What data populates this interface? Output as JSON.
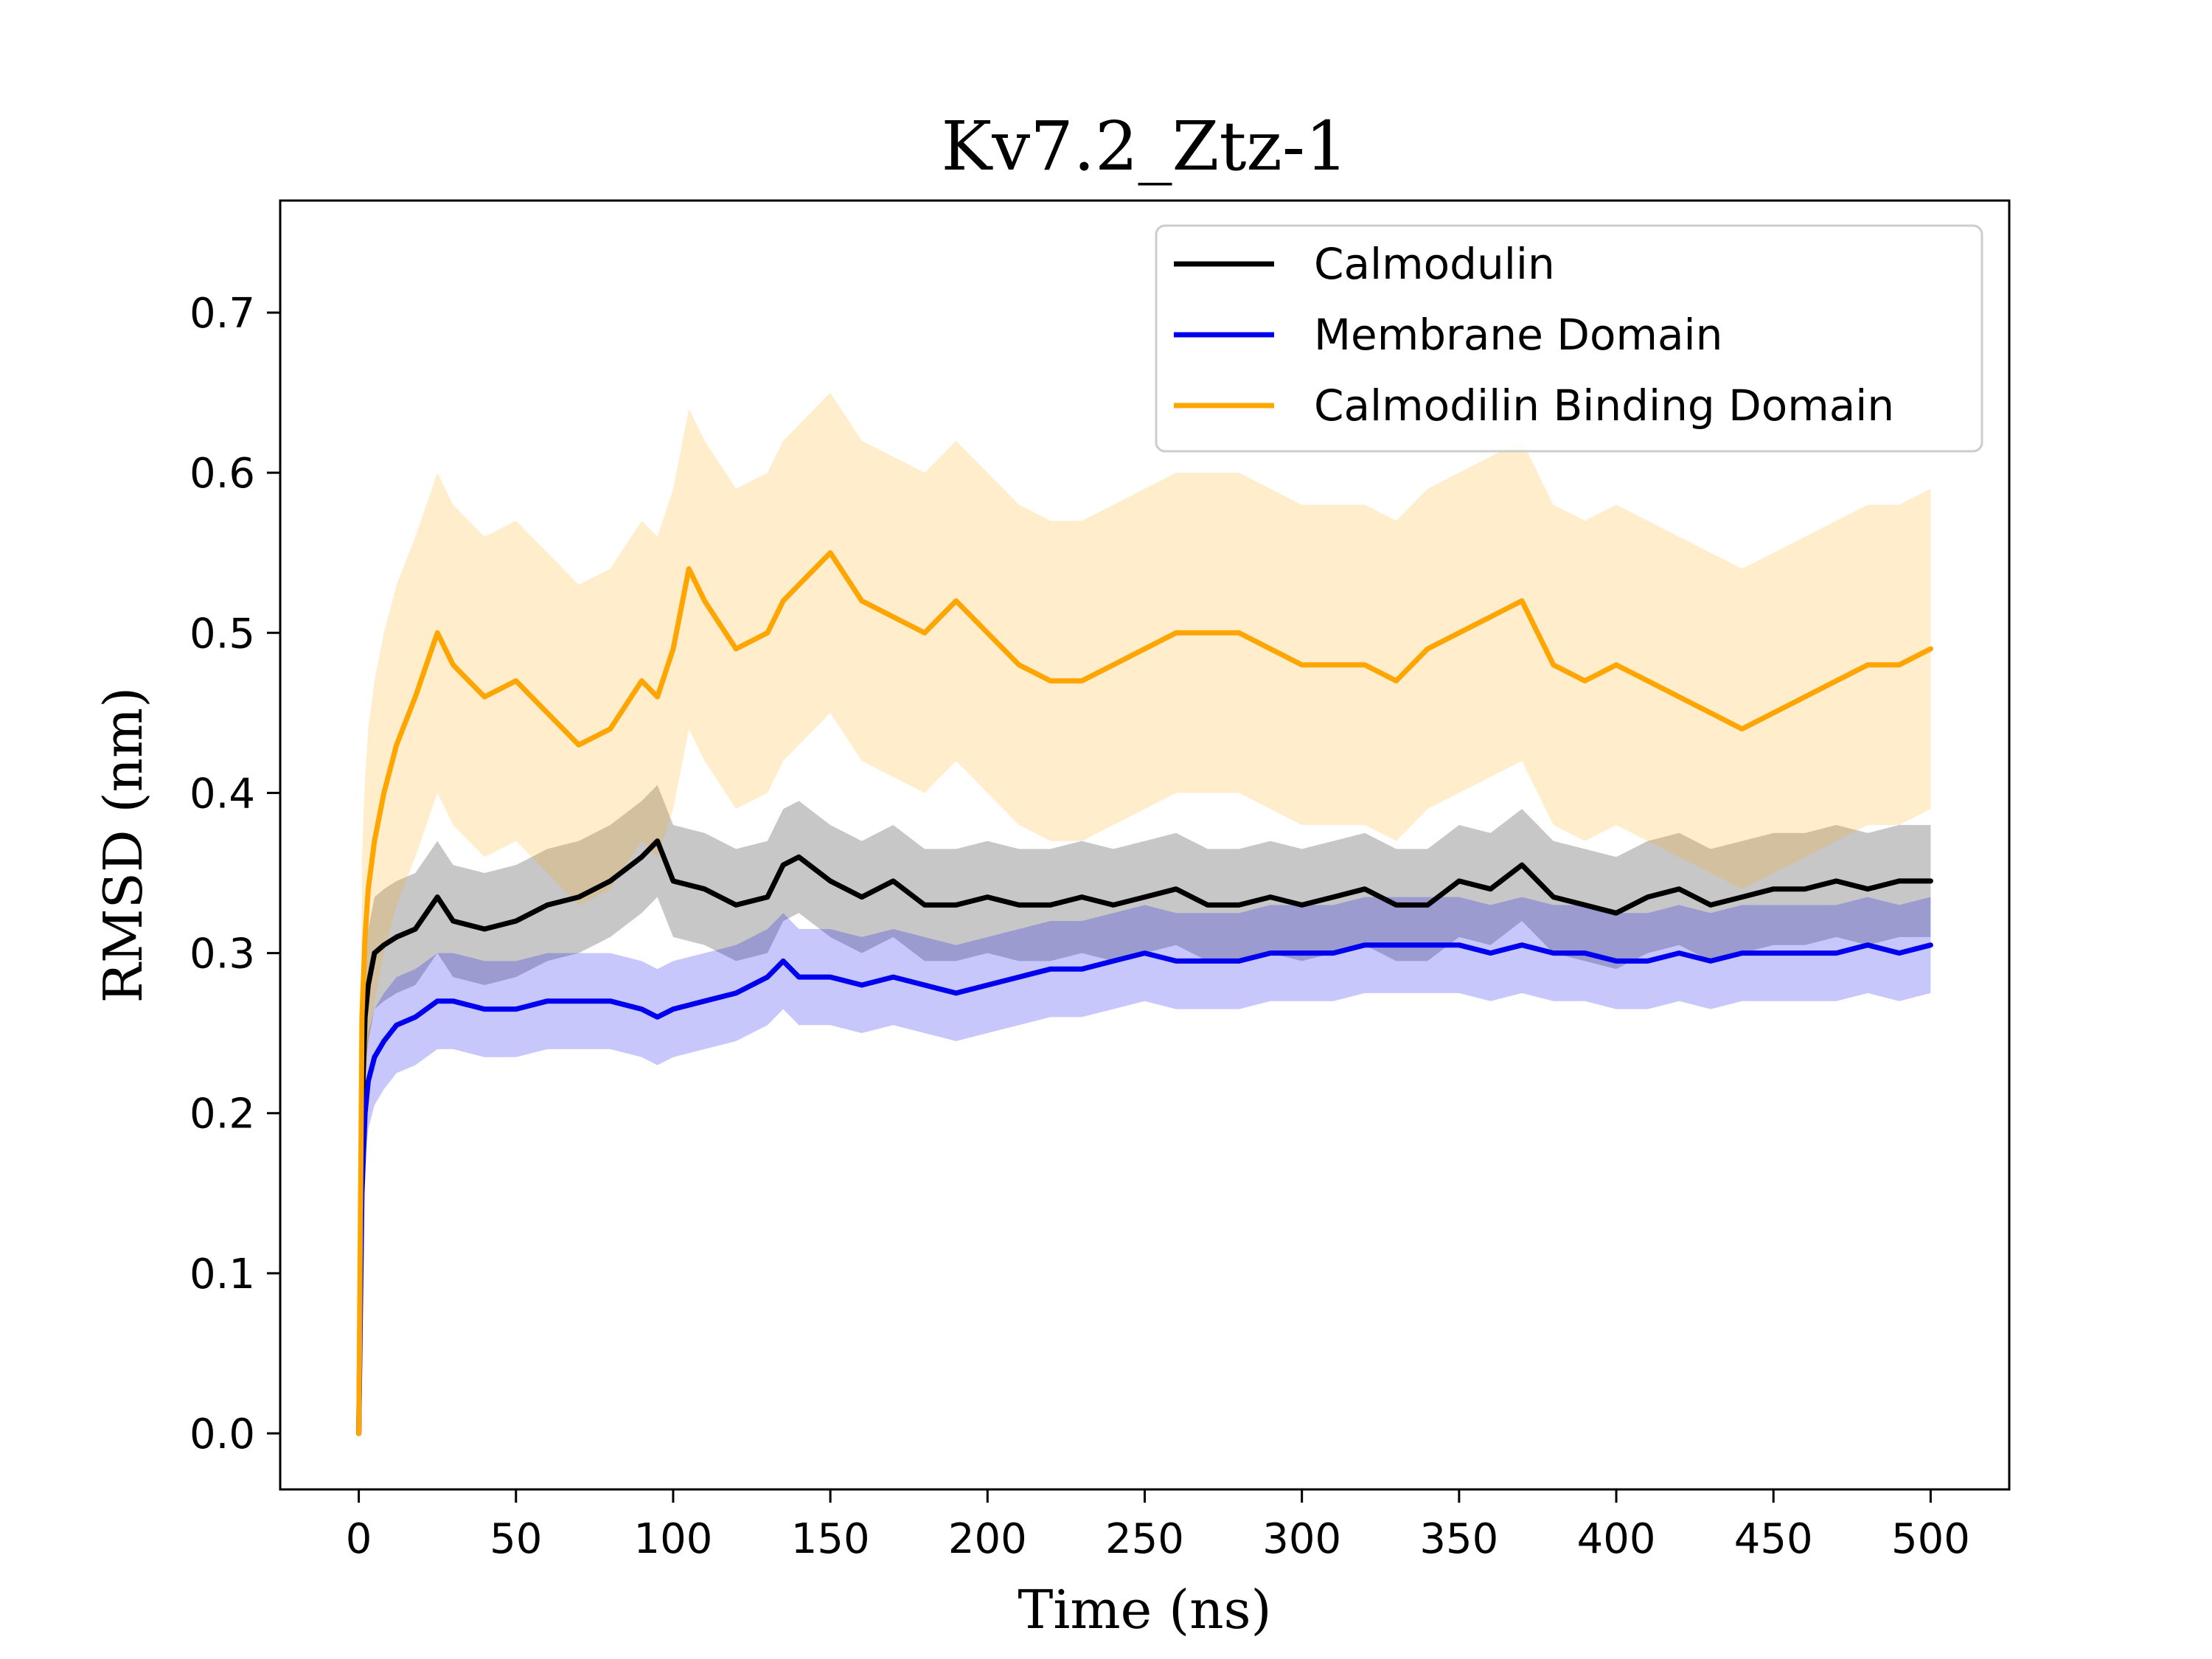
{
  "chart_data": {
    "type": "line",
    "title": "Kv7.2_Ztz-1",
    "xlabel": "Time (ns)",
    "ylabel": "RMSD (nm)",
    "xlim": [
      -25,
      525
    ],
    "ylim": [
      -0.035,
      0.77
    ],
    "x_ticks": [
      0,
      50,
      100,
      150,
      200,
      250,
      300,
      350,
      400,
      450,
      500
    ],
    "y_ticks": [
      0.0,
      0.1,
      0.2,
      0.3,
      0.4,
      0.5,
      0.6,
      0.7
    ],
    "y_tick_labels": [
      "0.0",
      "0.1",
      "0.2",
      "0.3",
      "0.4",
      "0.5",
      "0.6",
      "0.7"
    ],
    "legend_position": "top-right",
    "band": "shaded band around each mean line shows spread across runs",
    "series": [
      {
        "name": "Calmodulin",
        "color": "#000000",
        "x": [
          0,
          1,
          2,
          3,
          5,
          8,
          12,
          18,
          25,
          30,
          40,
          50,
          60,
          70,
          80,
          90,
          95,
          100,
          110,
          120,
          130,
          135,
          140,
          150,
          160,
          170,
          180,
          190,
          200,
          210,
          220,
          230,
          240,
          250,
          260,
          270,
          280,
          290,
          300,
          310,
          320,
          330,
          340,
          350,
          360,
          370,
          380,
          390,
          400,
          410,
          420,
          430,
          440,
          450,
          460,
          470,
          480,
          490,
          500
        ],
        "values": [
          0.0,
          0.2,
          0.26,
          0.28,
          0.3,
          0.305,
          0.31,
          0.315,
          0.335,
          0.32,
          0.315,
          0.32,
          0.33,
          0.335,
          0.345,
          0.36,
          0.37,
          0.345,
          0.34,
          0.33,
          0.335,
          0.355,
          0.36,
          0.345,
          0.335,
          0.345,
          0.33,
          0.33,
          0.335,
          0.33,
          0.33,
          0.335,
          0.33,
          0.335,
          0.34,
          0.33,
          0.33,
          0.335,
          0.33,
          0.335,
          0.34,
          0.33,
          0.33,
          0.345,
          0.34,
          0.355,
          0.335,
          0.33,
          0.325,
          0.335,
          0.34,
          0.33,
          0.335,
          0.34,
          0.34,
          0.345,
          0.34,
          0.345,
          0.345
        ],
        "spread": 0.035
      },
      {
        "name": "Membrane Domain",
        "color": "#0000ee",
        "x": [
          0,
          1,
          2,
          3,
          5,
          8,
          12,
          18,
          25,
          30,
          40,
          50,
          60,
          70,
          80,
          90,
          95,
          100,
          110,
          120,
          130,
          135,
          140,
          150,
          160,
          170,
          180,
          190,
          200,
          210,
          220,
          230,
          240,
          250,
          260,
          270,
          280,
          290,
          300,
          310,
          320,
          330,
          340,
          350,
          360,
          370,
          380,
          390,
          400,
          410,
          420,
          430,
          440,
          450,
          460,
          470,
          480,
          490,
          500
        ],
        "values": [
          0.0,
          0.15,
          0.2,
          0.22,
          0.235,
          0.245,
          0.255,
          0.26,
          0.27,
          0.27,
          0.265,
          0.265,
          0.27,
          0.27,
          0.27,
          0.265,
          0.26,
          0.265,
          0.27,
          0.275,
          0.285,
          0.295,
          0.285,
          0.285,
          0.28,
          0.285,
          0.28,
          0.275,
          0.28,
          0.285,
          0.29,
          0.29,
          0.295,
          0.3,
          0.295,
          0.295,
          0.295,
          0.3,
          0.3,
          0.3,
          0.305,
          0.305,
          0.305,
          0.305,
          0.3,
          0.305,
          0.3,
          0.3,
          0.295,
          0.295,
          0.3,
          0.295,
          0.3,
          0.3,
          0.3,
          0.3,
          0.305,
          0.3,
          0.305
        ],
        "spread": 0.03
      },
      {
        "name": "Calmodilin Binding Domain",
        "color": "#ffa500",
        "x": [
          0,
          1,
          2,
          3,
          5,
          8,
          12,
          18,
          25,
          30,
          40,
          50,
          60,
          70,
          80,
          90,
          95,
          100,
          105,
          110,
          120,
          130,
          135,
          140,
          150,
          160,
          170,
          180,
          190,
          200,
          210,
          220,
          230,
          240,
          250,
          260,
          270,
          280,
          290,
          300,
          310,
          320,
          330,
          340,
          350,
          360,
          370,
          380,
          390,
          400,
          410,
          420,
          430,
          440,
          450,
          460,
          470,
          480,
          490,
          500
        ],
        "values": [
          0.0,
          0.26,
          0.31,
          0.34,
          0.37,
          0.4,
          0.43,
          0.46,
          0.5,
          0.48,
          0.46,
          0.47,
          0.45,
          0.43,
          0.44,
          0.47,
          0.46,
          0.49,
          0.54,
          0.52,
          0.49,
          0.5,
          0.52,
          0.53,
          0.55,
          0.52,
          0.51,
          0.5,
          0.52,
          0.5,
          0.48,
          0.47,
          0.47,
          0.48,
          0.49,
          0.5,
          0.5,
          0.5,
          0.49,
          0.48,
          0.48,
          0.48,
          0.47,
          0.49,
          0.5,
          0.51,
          0.52,
          0.48,
          0.47,
          0.48,
          0.47,
          0.46,
          0.45,
          0.44,
          0.45,
          0.46,
          0.47,
          0.48,
          0.48,
          0.49
        ],
        "spread": 0.1
      }
    ]
  }
}
